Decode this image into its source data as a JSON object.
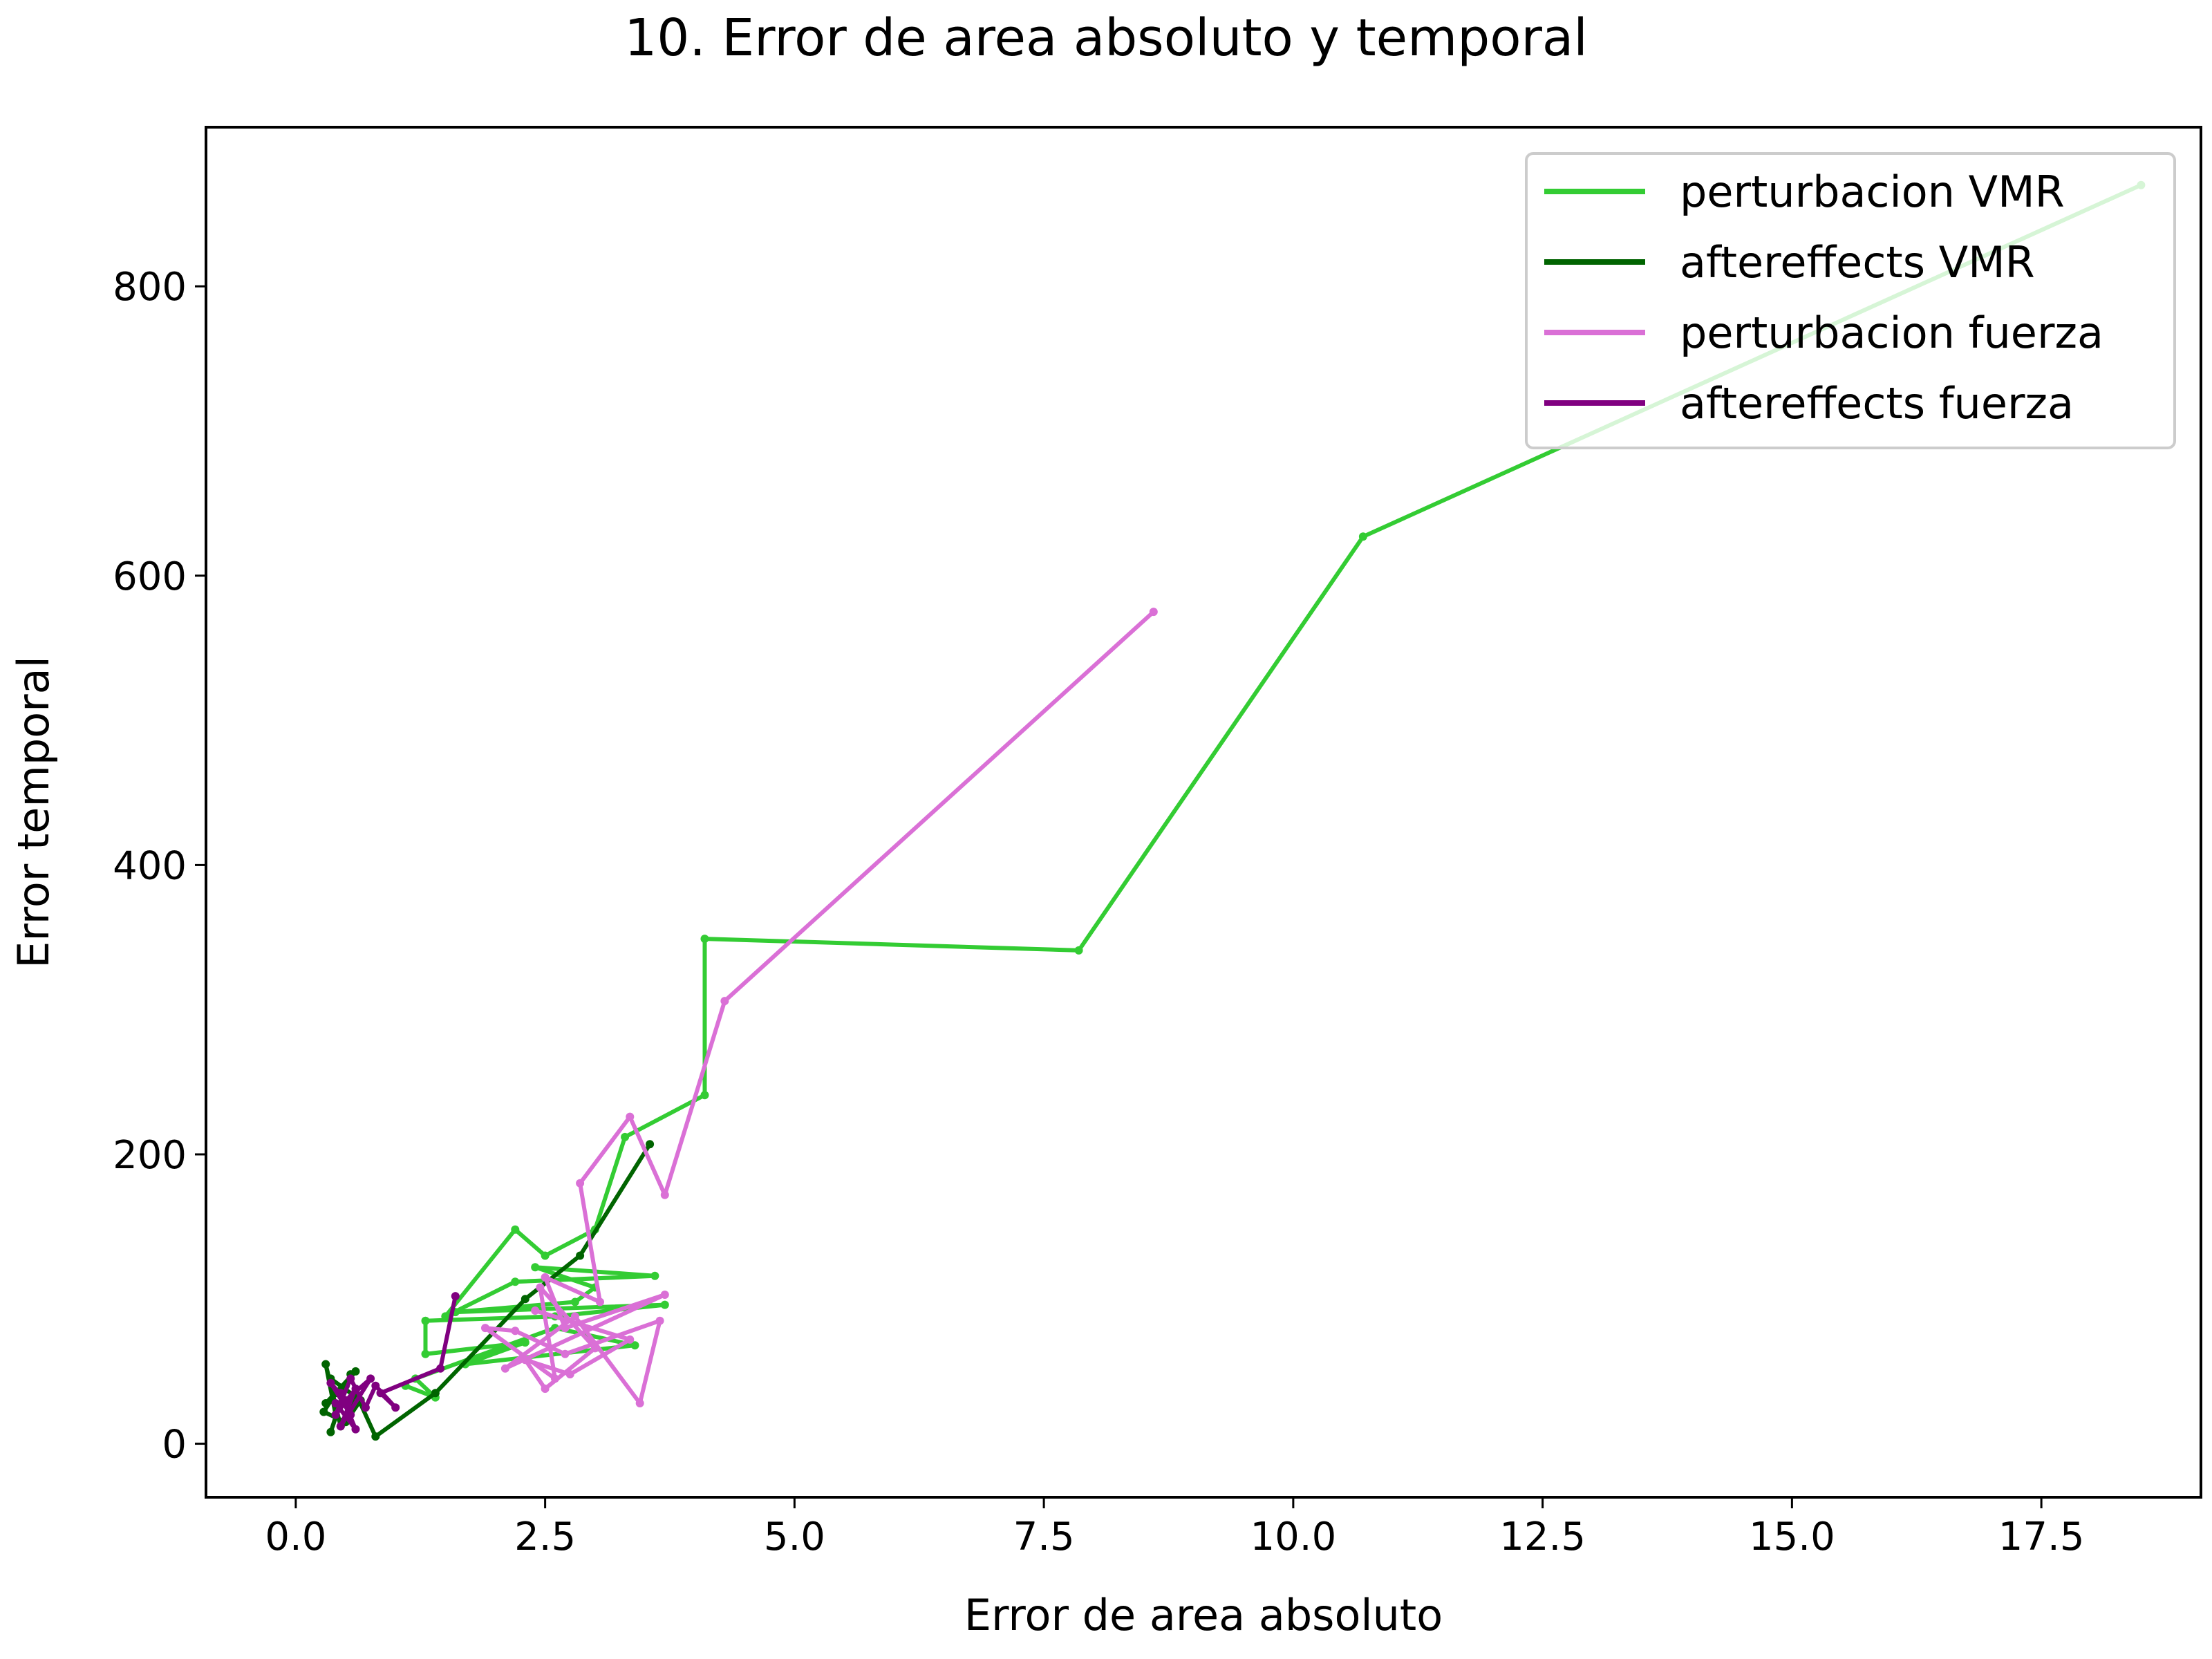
{
  "chart_data": {
    "type": "line",
    "title": "10. Error de area absoluto y temporal",
    "xlabel": "Error de area absoluto",
    "ylabel": "Error temporal",
    "xlim": [
      -0.9,
      19.1
    ],
    "ylim": [
      -37,
      910
    ],
    "xticks": [
      "0.0",
      "2.5",
      "5.0",
      "7.5",
      "10.0",
      "12.5",
      "15.0",
      "17.5"
    ],
    "yticks": [
      "0",
      "200",
      "400",
      "600",
      "800"
    ],
    "grid": false,
    "legend_position": "top-right",
    "series": [
      {
        "name": "perturbacion VMR",
        "color": "#33cc33",
        "points": [
          [
            18.5,
            870
          ],
          [
            10.7,
            627
          ],
          [
            7.85,
            341
          ],
          [
            4.1,
            349
          ],
          [
            4.1,
            241
          ],
          [
            3.3,
            212
          ],
          [
            3.0,
            148
          ],
          [
            2.5,
            130
          ],
          [
            2.2,
            148
          ],
          [
            1.5,
            88
          ],
          [
            2.2,
            112
          ],
          [
            3.6,
            116
          ],
          [
            2.4,
            122
          ],
          [
            3.0,
            108
          ],
          [
            2.8,
            98
          ],
          [
            1.6,
            91
          ],
          [
            3.7,
            96
          ],
          [
            2.6,
            88
          ],
          [
            1.3,
            85
          ],
          [
            1.3,
            62
          ],
          [
            2.3,
            70
          ],
          [
            1.7,
            55
          ],
          [
            3.4,
            68
          ],
          [
            2.6,
            80
          ],
          [
            1.2,
            45
          ],
          [
            1.4,
            32
          ],
          [
            1.1,
            40
          ]
        ]
      },
      {
        "name": "aftereffects VMR",
        "color": "#006400",
        "points": [
          [
            3.55,
            207
          ],
          [
            2.85,
            130
          ],
          [
            2.3,
            100
          ],
          [
            1.4,
            35
          ],
          [
            0.8,
            5
          ],
          [
            0.6,
            35
          ],
          [
            0.45,
            12
          ],
          [
            0.3,
            55
          ],
          [
            0.4,
            20
          ],
          [
            0.55,
            48
          ],
          [
            0.35,
            8
          ],
          [
            0.5,
            40
          ],
          [
            0.3,
            28
          ],
          [
            0.6,
            50
          ],
          [
            0.4,
            35
          ],
          [
            0.28,
            22
          ],
          [
            0.5,
            15
          ],
          [
            0.65,
            30
          ],
          [
            0.35,
            45
          ]
        ]
      },
      {
        "name": "perturbacion fuerza",
        "color": "#da70d6",
        "points": [
          [
            8.6,
            575
          ],
          [
            4.3,
            306
          ],
          [
            3.7,
            172
          ],
          [
            3.35,
            226
          ],
          [
            2.85,
            180
          ],
          [
            3.05,
            98
          ],
          [
            2.5,
            115
          ],
          [
            2.7,
            80
          ],
          [
            3.7,
            103
          ],
          [
            2.1,
            52
          ],
          [
            2.8,
            88
          ],
          [
            3.45,
            28
          ],
          [
            3.65,
            85
          ],
          [
            2.7,
            62
          ],
          [
            2.2,
            78
          ],
          [
            1.9,
            80
          ],
          [
            2.6,
            45
          ],
          [
            2.45,
            108
          ],
          [
            3.0,
            66
          ],
          [
            2.5,
            38
          ],
          [
            2.3,
            58
          ],
          [
            2.75,
            48
          ],
          [
            3.35,
            72
          ],
          [
            2.4,
            92
          ]
        ]
      },
      {
        "name": "aftereffects fuerza",
        "color": "#800080",
        "points": [
          [
            1.6,
            102
          ],
          [
            1.45,
            52
          ],
          [
            0.85,
            35
          ],
          [
            1.0,
            25
          ],
          [
            0.8,
            40
          ],
          [
            0.7,
            25
          ],
          [
            0.55,
            45
          ],
          [
            0.4,
            20
          ],
          [
            0.6,
            38
          ],
          [
            0.45,
            12
          ],
          [
            0.75,
            45
          ],
          [
            0.5,
            30
          ],
          [
            0.35,
            42
          ],
          [
            0.55,
            20
          ],
          [
            0.45,
            35
          ],
          [
            0.6,
            10
          ],
          [
            0.4,
            28
          ]
        ]
      }
    ]
  }
}
